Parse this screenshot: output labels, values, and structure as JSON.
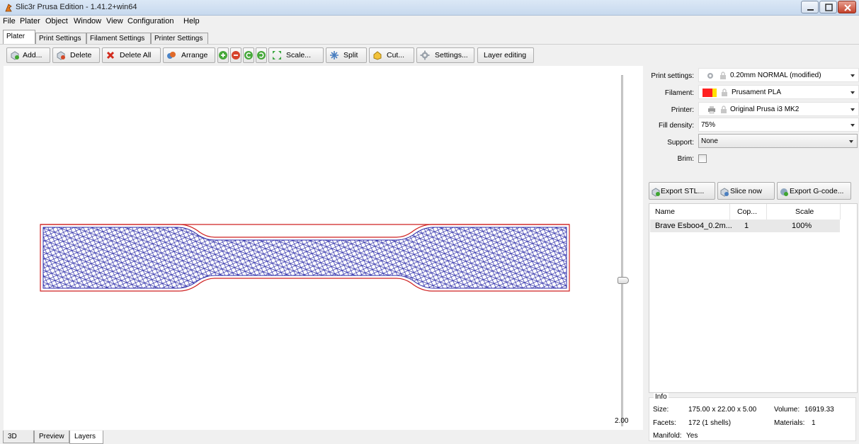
{
  "window": {
    "title": "Slic3r Prusa Edition - 1.41.2+win64"
  },
  "menu": [
    "File",
    "Plater",
    "Object",
    "Window",
    "View",
    "Configuration",
    "Help"
  ],
  "tabs": [
    "Plater",
    "Print Settings",
    "Filament Settings",
    "Printer Settings"
  ],
  "toolbar": {
    "add": "Add...",
    "delete": "Delete",
    "delete_all": "Delete All",
    "arrange": "Arrange",
    "scale": "Scale...",
    "split": "Split",
    "cut": "Cut...",
    "settings": "Settings...",
    "layer_editing": "Layer editing"
  },
  "layers_view": {
    "layer_value": "2.00"
  },
  "bottom_tabs": [
    "3D",
    "Preview",
    "Layers"
  ],
  "settings_panel": {
    "print_label": "Print settings:",
    "print_value": "0.20mm NORMAL (modified)",
    "filament_label": "Filament:",
    "filament_value": "Prusament PLA",
    "filament_colors": [
      "#ff2020",
      "#ffe000"
    ],
    "printer_label": "Printer:",
    "printer_value": "Original Prusa i3 MK2",
    "fill_label": "Fill density:",
    "fill_value": "75%",
    "support_label": "Support:",
    "support_value": "None",
    "brim_label": "Brim:",
    "brim_checked": false
  },
  "actions": {
    "export_stl": "Export STL...",
    "slice_now": "Slice now",
    "export_gcode": "Export G-code..."
  },
  "object_list": {
    "columns": [
      "Name",
      "Cop...",
      "Scale"
    ],
    "rows": [
      {
        "name": "Brave Esboo4_0.2m...",
        "copies": "1",
        "scale": "100%"
      }
    ]
  },
  "info": {
    "title": "Info",
    "size_label": "Size:",
    "size_value": "175.00 x 22.00 x 5.00",
    "volume_label": "Volume:",
    "volume_value": "16919.33",
    "facets_label": "Facets:",
    "facets_value": "172 (1 shells)",
    "materials_label": "Materials:",
    "materials_value": "1",
    "manifold_label": "Manifold:",
    "manifold_value": "Yes"
  },
  "colors": {
    "infill": "#2a2aa8",
    "perimeter": "#d42020",
    "accent": "#3b6fb6"
  }
}
